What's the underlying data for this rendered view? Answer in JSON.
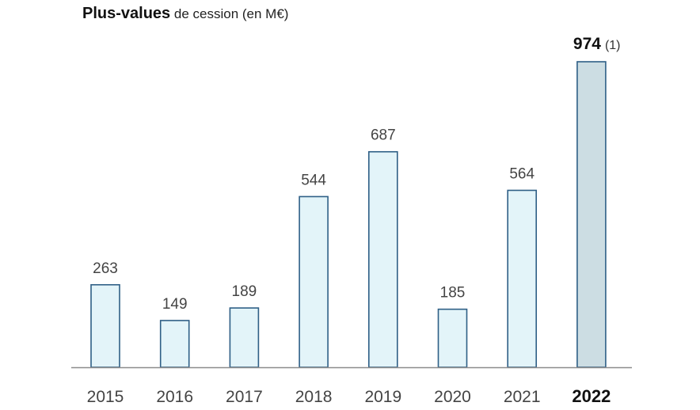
{
  "title": {
    "bold": "Plus-values",
    "rest": " de cession (en M€)"
  },
  "chart_data": {
    "type": "bar",
    "title": "Plus-values de cession (en M€)",
    "categories": [
      "2015",
      "2016",
      "2017",
      "2018",
      "2019",
      "2020",
      "2021",
      "2022"
    ],
    "values": [
      263,
      149,
      189,
      544,
      687,
      185,
      564,
      974
    ],
    "value_labels": [
      "263",
      "149",
      "189",
      "544",
      "687",
      "185",
      "564",
      "974"
    ],
    "highlight_index": 7,
    "highlight_note": "(1)",
    "ylim": [
      0,
      974
    ],
    "grid": false,
    "legend": "none",
    "colors": {
      "bar_fill": "#e3f4f9",
      "bar_stroke": "#2e5f86",
      "highlight_fill": "#ccdde3",
      "highlight_stroke": "#2e5f86",
      "axis": "#8c8c8c",
      "label": "#444444",
      "highlight_label": "#111111"
    }
  }
}
